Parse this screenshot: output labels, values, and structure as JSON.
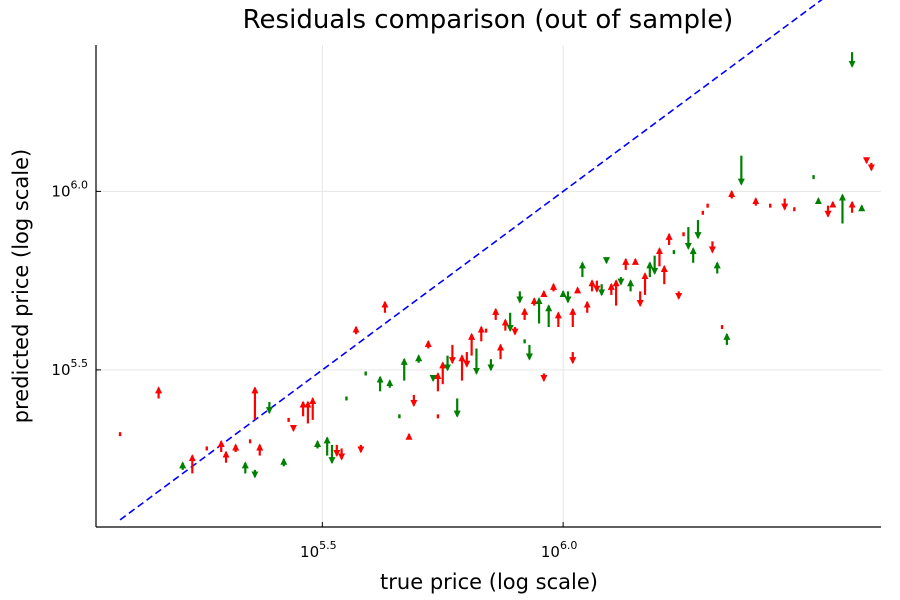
{
  "chart_data": {
    "type": "scatter",
    "title": "Residuals comparison (out of sample)",
    "xlabel": "true price (log scale)",
    "ylabel": "predicted price (log scale)",
    "x_scale": "log10",
    "y_scale": "log10",
    "xlim_log10": [
      5.03,
      6.66
    ],
    "ylim_log10": [
      5.06,
      6.41
    ],
    "grid": true,
    "legend": "none",
    "colors": {
      "fit_line": "#0000ff",
      "under": "#008000",
      "over": "#ff0000"
    },
    "x_ticks": [
      {
        "base": "10",
        "exp": "5.5",
        "log10": 5.5
      },
      {
        "base": "10",
        "exp": "6.0",
        "log10": 6.0
      }
    ],
    "y_ticks": [
      {
        "base": "10",
        "exp": "5.5",
        "log10": 5.5
      },
      {
        "base": "10",
        "exp": "6.0",
        "log10": 6.0
      }
    ],
    "reference_line": {
      "name": "y = x",
      "style": "dashed",
      "from_log10": 5.08,
      "to_log10": 6.61
    },
    "residuals_log10": [
      {
        "x": 5.08,
        "y0": 5.32,
        "y1": 5.32,
        "c": "red"
      },
      {
        "x": 5.16,
        "y0": 5.42,
        "y1": 5.45,
        "c": "red"
      },
      {
        "x": 5.21,
        "y0": 5.22,
        "y1": 5.24,
        "c": "green"
      },
      {
        "x": 5.23,
        "y0": 5.21,
        "y1": 5.26,
        "c": "red"
      },
      {
        "x": 5.29,
        "y0": 5.27,
        "y1": 5.3,
        "c": "red"
      },
      {
        "x": 5.3,
        "y0": 5.24,
        "y1": 5.27,
        "c": "red"
      },
      {
        "x": 5.32,
        "y0": 5.27,
        "y1": 5.29,
        "c": "red"
      },
      {
        "x": 5.34,
        "y0": 5.21,
        "y1": 5.24,
        "c": "green"
      },
      {
        "x": 5.35,
        "y0": 5.3,
        "y1": 5.3,
        "c": "red"
      },
      {
        "x": 5.36,
        "y0": 5.22,
        "y1": 5.2,
        "c": "green"
      },
      {
        "x": 5.36,
        "y0": 5.36,
        "y1": 5.45,
        "c": "red"
      },
      {
        "x": 5.37,
        "y0": 5.26,
        "y1": 5.29,
        "c": "red"
      },
      {
        "x": 5.39,
        "y0": 5.41,
        "y1": 5.38,
        "c": "green"
      },
      {
        "x": 5.42,
        "y0": 5.23,
        "y1": 5.25,
        "c": "green"
      },
      {
        "x": 5.43,
        "y0": 5.36,
        "y1": 5.36,
        "c": "red"
      },
      {
        "x": 5.46,
        "y0": 5.37,
        "y1": 5.41,
        "c": "red"
      },
      {
        "x": 5.47,
        "y0": 5.35,
        "y1": 5.41,
        "c": "red"
      },
      {
        "x": 5.48,
        "y0": 5.36,
        "y1": 5.42,
        "c": "red"
      },
      {
        "x": 5.49,
        "y0": 5.28,
        "y1": 5.3,
        "c": "green"
      },
      {
        "x": 5.51,
        "y0": 5.26,
        "y1": 5.31,
        "c": "green"
      },
      {
        "x": 5.52,
        "y0": 5.29,
        "y1": 5.24,
        "c": "green"
      },
      {
        "x": 5.53,
        "y0": 5.29,
        "y1": 5.26,
        "c": "red"
      },
      {
        "x": 5.54,
        "y0": 5.28,
        "y1": 5.25,
        "c": "red"
      },
      {
        "x": 5.55,
        "y0": 5.42,
        "y1": 5.42,
        "c": "green"
      },
      {
        "x": 5.57,
        "y0": 5.6,
        "y1": 5.62,
        "c": "red"
      },
      {
        "x": 5.59,
        "y0": 5.49,
        "y1": 5.49,
        "c": "green"
      },
      {
        "x": 5.62,
        "y0": 5.44,
        "y1": 5.48,
        "c": "green"
      },
      {
        "x": 5.64,
        "y0": 5.45,
        "y1": 5.47,
        "c": "green"
      },
      {
        "x": 5.66,
        "y0": 5.37,
        "y1": 5.37,
        "c": "green"
      },
      {
        "x": 5.67,
        "y0": 5.47,
        "y1": 5.53,
        "c": "green"
      },
      {
        "x": 5.68,
        "y0": 5.31,
        "y1": 5.32,
        "c": "red"
      },
      {
        "x": 5.69,
        "y0": 5.43,
        "y1": 5.4,
        "c": "red"
      },
      {
        "x": 5.7,
        "y0": 5.52,
        "y1": 5.54,
        "c": "green"
      },
      {
        "x": 5.72,
        "y0": 5.56,
        "y1": 5.58,
        "c": "red"
      },
      {
        "x": 5.73,
        "y0": 5.48,
        "y1": 5.47,
        "c": "green"
      },
      {
        "x": 5.74,
        "y0": 5.44,
        "y1": 5.49,
        "c": "red"
      },
      {
        "x": 5.75,
        "y0": 5.46,
        "y1": 5.52,
        "c": "red"
      },
      {
        "x": 5.76,
        "y0": 5.54,
        "y1": 5.5,
        "c": "green"
      },
      {
        "x": 5.77,
        "y0": 5.57,
        "y1": 5.52,
        "c": "red"
      },
      {
        "x": 5.78,
        "y0": 5.42,
        "y1": 5.37,
        "c": "green"
      },
      {
        "x": 5.79,
        "y0": 5.47,
        "y1": 5.54,
        "c": "red"
      },
      {
        "x": 5.8,
        "y0": 5.55,
        "y1": 5.51,
        "c": "red"
      },
      {
        "x": 5.81,
        "y0": 5.54,
        "y1": 5.6,
        "c": "red"
      },
      {
        "x": 5.82,
        "y0": 5.56,
        "y1": 5.49,
        "c": "green"
      },
      {
        "x": 5.83,
        "y0": 5.58,
        "y1": 5.62,
        "c": "red"
      },
      {
        "x": 5.84,
        "y0": 5.61,
        "y1": 5.61,
        "c": "red"
      },
      {
        "x": 5.86,
        "y0": 5.64,
        "y1": 5.67,
        "c": "red"
      },
      {
        "x": 5.87,
        "y0": 5.53,
        "y1": 5.57,
        "c": "red"
      },
      {
        "x": 5.88,
        "y0": 5.61,
        "y1": 5.64,
        "c": "red"
      },
      {
        "x": 5.89,
        "y0": 5.66,
        "y1": 5.61,
        "c": "green"
      },
      {
        "x": 5.9,
        "y0": 5.62,
        "y1": 5.6,
        "c": "red"
      },
      {
        "x": 5.91,
        "y0": 5.72,
        "y1": 5.69,
        "c": "green"
      },
      {
        "x": 5.92,
        "y0": 5.64,
        "y1": 5.67,
        "c": "red"
      },
      {
        "x": 5.93,
        "y0": 5.57,
        "y1": 5.53,
        "c": "green"
      },
      {
        "x": 5.94,
        "y0": 5.68,
        "y1": 5.7,
        "c": "red"
      },
      {
        "x": 5.95,
        "y0": 5.63,
        "y1": 5.7,
        "c": "green"
      },
      {
        "x": 5.96,
        "y0": 5.71,
        "y1": 5.72,
        "c": "red"
      },
      {
        "x": 5.97,
        "y0": 5.62,
        "y1": 5.68,
        "c": "green"
      },
      {
        "x": 5.98,
        "y0": 5.72,
        "y1": 5.74,
        "c": "red"
      },
      {
        "x": 5.99,
        "y0": 5.62,
        "y1": 5.66,
        "c": "red"
      },
      {
        "x": 6.0,
        "y0": 5.71,
        "y1": 5.72,
        "c": "green"
      },
      {
        "x": 6.01,
        "y0": 5.72,
        "y1": 5.69,
        "c": "green"
      },
      {
        "x": 6.02,
        "y0": 5.62,
        "y1": 5.67,
        "c": "red"
      },
      {
        "x": 6.03,
        "y0": 5.72,
        "y1": 5.73,
        "c": "red"
      },
      {
        "x": 6.04,
        "y0": 5.76,
        "y1": 5.8,
        "c": "green"
      },
      {
        "x": 6.05,
        "y0": 5.66,
        "y1": 5.69,
        "c": "red"
      },
      {
        "x": 6.06,
        "y0": 5.72,
        "y1": 5.75,
        "c": "red"
      },
      {
        "x": 6.07,
        "y0": 5.75,
        "y1": 5.72,
        "c": "red"
      },
      {
        "x": 6.08,
        "y0": 5.74,
        "y1": 5.71,
        "c": "green"
      },
      {
        "x": 6.09,
        "y0": 5.81,
        "y1": 5.8,
        "c": "green"
      },
      {
        "x": 6.1,
        "y0": 5.71,
        "y1": 5.74,
        "c": "red"
      },
      {
        "x": 6.11,
        "y0": 5.68,
        "y1": 5.75,
        "c": "red"
      },
      {
        "x": 6.12,
        "y0": 5.76,
        "y1": 5.74,
        "c": "green"
      },
      {
        "x": 6.13,
        "y0": 5.78,
        "y1": 5.81,
        "c": "red"
      },
      {
        "x": 6.14,
        "y0": 5.72,
        "y1": 5.75,
        "c": "green"
      },
      {
        "x": 6.15,
        "y0": 5.8,
        "y1": 5.81,
        "c": "red"
      },
      {
        "x": 6.16,
        "y0": 5.72,
        "y1": 5.68,
        "c": "red"
      },
      {
        "x": 6.17,
        "y0": 5.71,
        "y1": 5.77,
        "c": "red"
      },
      {
        "x": 6.18,
        "y0": 5.76,
        "y1": 5.8,
        "c": "green"
      },
      {
        "x": 6.19,
        "y0": 5.82,
        "y1": 5.77,
        "c": "green"
      },
      {
        "x": 6.2,
        "y0": 5.79,
        "y1": 5.84,
        "c": "red"
      },
      {
        "x": 6.21,
        "y0": 5.74,
        "y1": 5.79,
        "c": "red"
      },
      {
        "x": 6.22,
        "y0": 5.85,
        "y1": 5.88,
        "c": "red"
      },
      {
        "x": 6.23,
        "y0": 5.83,
        "y1": 5.83,
        "c": "green"
      },
      {
        "x": 6.24,
        "y0": 5.72,
        "y1": 5.7,
        "c": "red"
      },
      {
        "x": 6.25,
        "y0": 5.88,
        "y1": 5.88,
        "c": "red"
      },
      {
        "x": 6.26,
        "y0": 5.9,
        "y1": 5.84,
        "c": "green"
      },
      {
        "x": 6.27,
        "y0": 5.8,
        "y1": 5.84,
        "c": "green"
      },
      {
        "x": 6.28,
        "y0": 5.92,
        "y1": 5.87,
        "c": "green"
      },
      {
        "x": 6.29,
        "y0": 5.94,
        "y1": 5.94,
        "c": "red"
      },
      {
        "x": 6.3,
        "y0": 5.96,
        "y1": 5.96,
        "c": "red"
      },
      {
        "x": 6.31,
        "y0": 5.86,
        "y1": 5.83,
        "c": "red"
      },
      {
        "x": 6.32,
        "y0": 5.77,
        "y1": 5.8,
        "c": "green"
      },
      {
        "x": 6.33,
        "y0": 5.62,
        "y1": 5.62,
        "c": "red"
      },
      {
        "x": 6.34,
        "y0": 5.57,
        "y1": 5.6,
        "c": "green"
      },
      {
        "x": 6.35,
        "y0": 5.98,
        "y1": 6.0,
        "c": "red"
      },
      {
        "x": 6.37,
        "y0": 6.1,
        "y1": 6.02,
        "c": "green"
      },
      {
        "x": 6.4,
        "y0": 5.96,
        "y1": 5.98,
        "c": "red"
      },
      {
        "x": 6.43,
        "y0": 5.96,
        "y1": 5.96,
        "c": "red"
      },
      {
        "x": 6.46,
        "y0": 5.98,
        "y1": 5.95,
        "c": "red"
      },
      {
        "x": 6.48,
        "y0": 5.95,
        "y1": 5.95,
        "c": "red"
      },
      {
        "x": 6.52,
        "y0": 6.04,
        "y1": 6.04,
        "c": "green"
      },
      {
        "x": 6.53,
        "y0": 5.97,
        "y1": 5.98,
        "c": "green"
      },
      {
        "x": 6.55,
        "y0": 5.96,
        "y1": 5.93,
        "c": "red"
      },
      {
        "x": 6.56,
        "y0": 5.96,
        "y1": 5.97,
        "c": "red"
      },
      {
        "x": 6.58,
        "y0": 5.91,
        "y1": 5.99,
        "c": "green"
      },
      {
        "x": 6.6,
        "y0": 5.94,
        "y1": 5.97,
        "c": "red"
      },
      {
        "x": 6.62,
        "y0": 5.95,
        "y1": 5.96,
        "c": "green"
      },
      {
        "x": 6.63,
        "y0": 6.09,
        "y1": 6.08,
        "c": "red"
      },
      {
        "x": 6.6,
        "y0": 6.39,
        "y1": 6.35,
        "c": "green"
      },
      {
        "x": 6.64,
        "y0": 6.08,
        "y1": 6.06,
        "c": "red"
      },
      {
        "x": 6.02,
        "y0": 5.55,
        "y1": 5.52,
        "c": "red"
      },
      {
        "x": 5.96,
        "y0": 5.49,
        "y1": 5.47,
        "c": "red"
      },
      {
        "x": 5.92,
        "y0": 5.58,
        "y1": 5.58,
        "c": "green"
      },
      {
        "x": 5.85,
        "y0": 5.53,
        "y1": 5.5,
        "c": "green"
      },
      {
        "x": 5.74,
        "y0": 5.37,
        "y1": 5.37,
        "c": "red"
      },
      {
        "x": 5.58,
        "y0": 5.29,
        "y1": 5.27,
        "c": "red"
      },
      {
        "x": 5.63,
        "y0": 5.66,
        "y1": 5.69,
        "c": "red"
      },
      {
        "x": 5.44,
        "y0": 5.34,
        "y1": 5.33,
        "c": "red"
      },
      {
        "x": 5.26,
        "y0": 5.28,
        "y1": 5.28,
        "c": "red"
      }
    ]
  }
}
